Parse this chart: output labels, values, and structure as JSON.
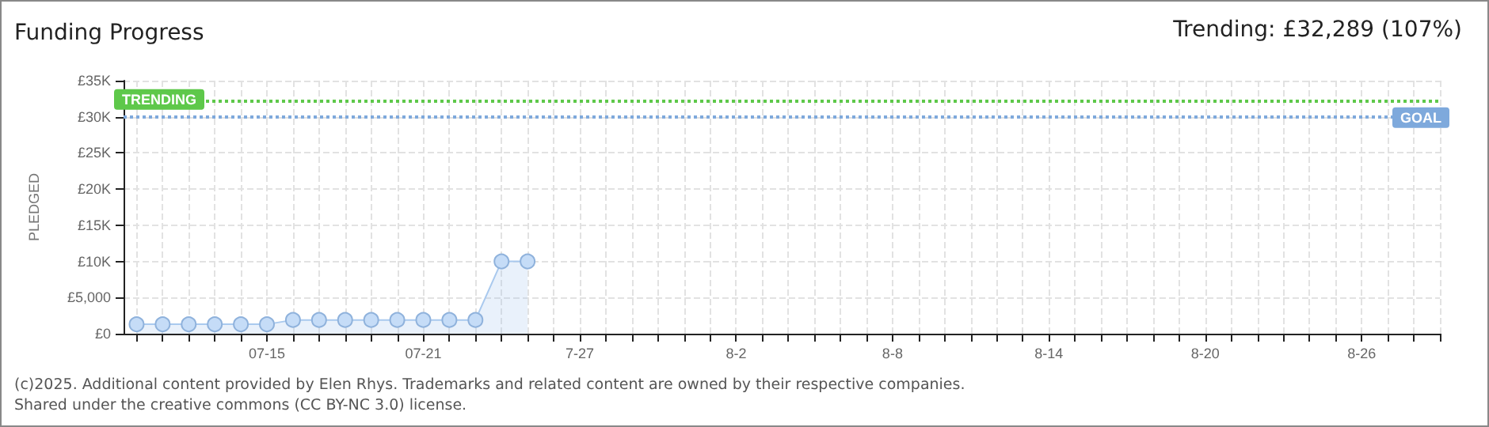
{
  "chart_data": {
    "type": "area",
    "title": "Funding Progress",
    "subtitle": "Trending: £32,289 (107%)",
    "ylabel": "PLEDGED",
    "x": [
      "--07-10",
      "--07-11",
      "--07-12",
      "--07-13",
      "--07-14",
      "--07-15",
      "--07-16",
      "--07-17",
      "--07-18",
      "--07-19",
      "--07-20",
      "--07-21",
      "--07-22",
      "--07-23",
      "--07-24",
      "--07-25"
    ],
    "series": [
      {
        "color": "#a9c9ee",
        "values": [
          1300,
          1300,
          1300,
          1300,
          1300,
          1300,
          1900,
          1900,
          1900,
          1900,
          1900,
          1900,
          1900,
          1900,
          10000,
          10000
        ]
      }
    ],
    "marker": "circle",
    "xlim": [
      "--07-09T12:00",
      "--08-29"
    ],
    "xticks": [
      {
        "value": "--07-10",
        "label": null
      },
      {
        "value": "--07-11",
        "label": null
      },
      {
        "value": "--07-12",
        "label": null
      },
      {
        "value": "--07-13",
        "label": null
      },
      {
        "value": "--07-14",
        "label": null
      },
      {
        "value": "--07-15",
        "label": "07-15"
      },
      {
        "value": "--07-16",
        "label": null
      },
      {
        "value": "--07-17",
        "label": null
      },
      {
        "value": "--07-18",
        "label": null
      },
      {
        "value": "--07-19",
        "label": null
      },
      {
        "value": "--07-20",
        "label": null
      },
      {
        "value": "--07-21",
        "label": "07-21"
      },
      {
        "value": "--07-22",
        "label": null
      },
      {
        "value": "--07-23",
        "label": null
      },
      {
        "value": "--07-24",
        "label": null
      },
      {
        "value": "--07-25",
        "label": null
      },
      {
        "value": "--07-26",
        "label": null
      },
      {
        "value": "--07-27",
        "label": "7-27"
      },
      {
        "value": "--07-28",
        "label": null
      },
      {
        "value": "--07-29",
        "label": null
      },
      {
        "value": "--07-30",
        "label": null
      },
      {
        "value": "--07-31",
        "label": null
      },
      {
        "value": "--08-01",
        "label": null
      },
      {
        "value": "--08-02",
        "label": "8-2"
      },
      {
        "value": "--08-03",
        "label": null
      },
      {
        "value": "--08-04",
        "label": null
      },
      {
        "value": "--08-05",
        "label": null
      },
      {
        "value": "--08-06",
        "label": null
      },
      {
        "value": "--08-07",
        "label": null
      },
      {
        "value": "--08-08",
        "label": "8-8"
      },
      {
        "value": "--08-09",
        "label": null
      },
      {
        "value": "--08-10",
        "label": null
      },
      {
        "value": "--08-11",
        "label": null
      },
      {
        "value": "--08-12",
        "label": null
      },
      {
        "value": "--08-13",
        "label": null
      },
      {
        "value": "--08-14",
        "label": "8-14"
      },
      {
        "value": "--08-15",
        "label": null
      },
      {
        "value": "--08-16",
        "label": null
      },
      {
        "value": "--08-17",
        "label": null
      },
      {
        "value": "--08-18",
        "label": null
      },
      {
        "value": "--08-19",
        "label": null
      },
      {
        "value": "--08-20",
        "label": "8-20"
      },
      {
        "value": "--08-21",
        "label": null
      },
      {
        "value": "--08-22",
        "label": null
      },
      {
        "value": "--08-23",
        "label": null
      },
      {
        "value": "--08-24",
        "label": null
      },
      {
        "value": "--08-25",
        "label": null
      },
      {
        "value": "--08-26",
        "label": "8-26"
      },
      {
        "value": "--08-27",
        "label": null
      },
      {
        "value": "--08-28",
        "label": null
      },
      {
        "value": "--08-29",
        "label": null
      }
    ],
    "ylim": [
      0,
      35000
    ],
    "yticks": [
      {
        "value": 0,
        "label": "£0"
      },
      {
        "value": 5000,
        "label": "£5,000"
      },
      {
        "value": 10000,
        "label": "£10K"
      },
      {
        "value": 15000,
        "label": "£15K"
      },
      {
        "value": 20000,
        "label": "£20K"
      },
      {
        "value": 25000,
        "label": "£25K"
      },
      {
        "value": 30000,
        "label": "£30K"
      },
      {
        "value": 35000,
        "label": "£35K"
      }
    ],
    "grid": true,
    "ref_lines": [
      {
        "axis": "y",
        "value": 32289,
        "label": "TRENDING",
        "color": "#5ec84a",
        "line_style": "dotted"
      },
      {
        "axis": "y",
        "value": 30000,
        "label": "GOAL",
        "color": "#7ea9dc",
        "line_style": "dotted"
      }
    ],
    "annotations": [
      "(c)2025. Additional content provided by Elen Rhys. Trademarks and related content are owned by their respective companies.",
      "Shared under the creative commons (CC BY-NC 3.0) license."
    ]
  }
}
